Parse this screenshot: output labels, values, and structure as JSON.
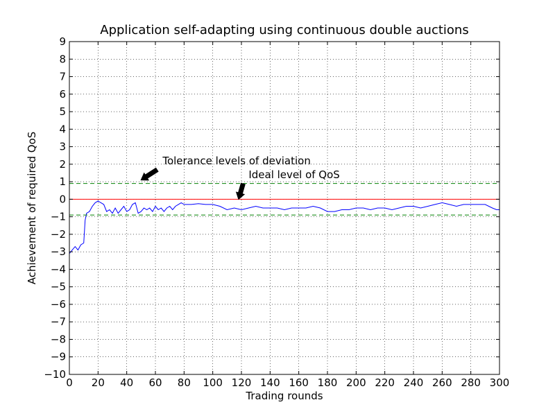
{
  "chart_data": {
    "type": "line",
    "title": "Application self-adapting using continuous double auctions",
    "xlabel": "Trading rounds",
    "ylabel": "Achievement of required QoS",
    "xlim": [
      0,
      300
    ],
    "ylim": [
      -10,
      9
    ],
    "xticks": [
      0,
      20,
      40,
      60,
      80,
      100,
      120,
      140,
      160,
      180,
      200,
      220,
      240,
      260,
      280,
      300
    ],
    "yticks": [
      -10,
      -9,
      -8,
      -7,
      -6,
      -5,
      -4,
      -3,
      -2,
      -1,
      0,
      1,
      2,
      3,
      4,
      5,
      6,
      7,
      8,
      9
    ],
    "grid": true,
    "series": [
      {
        "color": "#0000ff",
        "style": "solid",
        "x": [
          0,
          2,
          4,
          6,
          8,
          10,
          11,
          12,
          14,
          16,
          18,
          20,
          22,
          24,
          26,
          28,
          30,
          32,
          34,
          36,
          38,
          40,
          42,
          44,
          46,
          48,
          50,
          52,
          54,
          56,
          58,
          60,
          62,
          64,
          66,
          68,
          70,
          72,
          74,
          76,
          78,
          80,
          85,
          90,
          95,
          100,
          105,
          110,
          115,
          120,
          125,
          130,
          135,
          140,
          145,
          150,
          155,
          160,
          165,
          170,
          175,
          180,
          185,
          190,
          195,
          200,
          205,
          210,
          215,
          220,
          225,
          230,
          235,
          240,
          245,
          250,
          255,
          260,
          265,
          270,
          275,
          280,
          285,
          290,
          295,
          298,
          300
        ],
        "y": [
          -3.1,
          -2.9,
          -2.7,
          -2.9,
          -2.6,
          -2.5,
          -1.2,
          -0.8,
          -0.7,
          -0.4,
          -0.2,
          -0.1,
          -0.2,
          -0.3,
          -0.7,
          -0.6,
          -0.8,
          -0.5,
          -0.8,
          -0.6,
          -0.4,
          -0.7,
          -0.6,
          -0.3,
          -0.2,
          -0.8,
          -0.7,
          -0.5,
          -0.6,
          -0.5,
          -0.7,
          -0.4,
          -0.6,
          -0.5,
          -0.7,
          -0.5,
          -0.4,
          -0.6,
          -0.4,
          -0.3,
          -0.2,
          -0.3,
          -0.3,
          -0.25,
          -0.3,
          -0.3,
          -0.4,
          -0.6,
          -0.5,
          -0.6,
          -0.5,
          -0.4,
          -0.5,
          -0.5,
          -0.5,
          -0.6,
          -0.5,
          -0.5,
          -0.5,
          -0.4,
          -0.5,
          -0.7,
          -0.7,
          -0.6,
          -0.6,
          -0.5,
          -0.5,
          -0.6,
          -0.5,
          -0.5,
          -0.6,
          -0.5,
          -0.4,
          -0.4,
          -0.5,
          -0.4,
          -0.3,
          -0.2,
          -0.3,
          -0.4,
          -0.3,
          -0.3,
          -0.3,
          -0.3,
          -0.5,
          -0.6,
          -0.6
        ]
      },
      {
        "color": "#ff0000",
        "style": "solid",
        "x": [
          0,
          300
        ],
        "y": [
          0,
          0
        ]
      },
      {
        "color": "#008000",
        "style": "dashed",
        "x": [
          0,
          300
        ],
        "y": [
          0.9,
          0.9
        ]
      },
      {
        "color": "#008000",
        "style": "dashed",
        "x": [
          0,
          300
        ],
        "y": [
          -0.9,
          -0.9
        ]
      }
    ],
    "annotations": [
      {
        "text": "Tolerance levels of deviation",
        "x": 65,
        "y": 2.0,
        "arrow_to": [
          50,
          1.1
        ]
      },
      {
        "text": "Ideal level of QoS",
        "x": 125,
        "y": 1.2,
        "arrow_to": [
          118,
          0.0
        ]
      }
    ]
  }
}
